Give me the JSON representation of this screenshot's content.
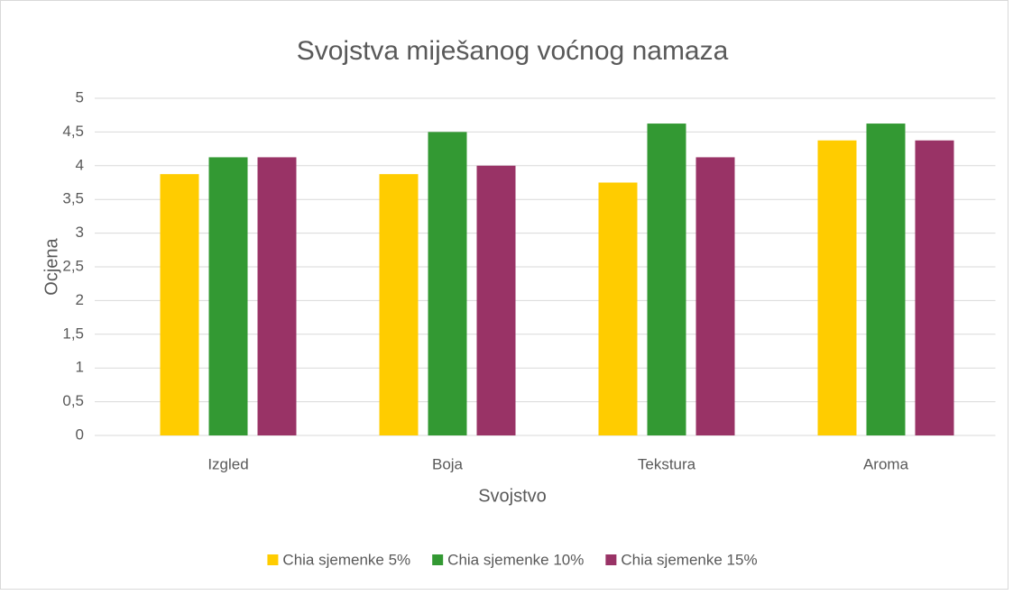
{
  "chart_data": {
    "type": "bar",
    "title": "Svojstva miješanog voćnog namaza",
    "x_label": "Svojstvo",
    "y_label": "Ocjena",
    "categories": [
      "Izgled",
      "Boja",
      "Tekstura",
      "Aroma"
    ],
    "series": [
      {
        "name": "Chia sjemenke 5%",
        "color": "#ffcc00",
        "values": [
          3.875,
          3.875,
          3.75,
          4.375
        ]
      },
      {
        "name": "Chia sjemenke 10%",
        "color": "#339933",
        "values": [
          4.125,
          4.5,
          4.625,
          4.625
        ]
      },
      {
        "name": "Chia sjemenke 15%",
        "color": "#993366",
        "values": [
          4.125,
          4.0,
          4.125,
          4.375
        ]
      }
    ],
    "ylim": [
      0,
      5
    ],
    "yticks": [
      0,
      {
        "value": 0.5,
        "label": "0,5"
      },
      1,
      {
        "value": 1.5,
        "label": "1,5"
      },
      2,
      {
        "value": 2.5,
        "label": "2,5"
      },
      3,
      {
        "value": 3.5,
        "label": "3,5"
      },
      4,
      {
        "value": 4.5,
        "label": "4,5"
      },
      5
    ],
    "grid": true,
    "legend": "bottom"
  }
}
